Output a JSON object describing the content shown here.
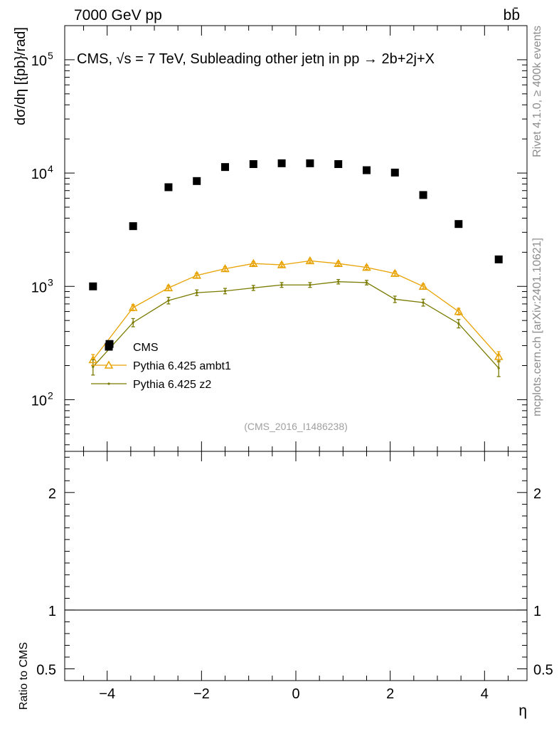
{
  "header": {
    "left_text": "7000 GeV pp",
    "right_text": "bb̄"
  },
  "side_labels": {
    "rivet": "Rivet 4.1.0, ≥ 400k events",
    "mcplots": "mcplots.cern.ch [arXiv:2401.10621]"
  },
  "chart_data": {
    "type": "scatter",
    "title": "CMS, √s = 7 TeV, Subleading other jetη in pp →  2b+2j+X",
    "xlabel": "η",
    "ylabel": "dσ/dη [{pb}/rad]",
    "ratio_ylabel": "Ratio to CMS",
    "watermark": "(CMS_2016_I1486238)",
    "y_scale": "log",
    "xlim": [
      -4.9,
      4.9
    ],
    "ylim": [
      35,
      200000
    ],
    "ratio_ylim": [
      0.4,
      2.35
    ],
    "x_ticks": [
      -4,
      -2,
      0,
      2,
      4
    ],
    "x_tick_labels": [
      "−4",
      "−2",
      "0",
      "2",
      "4"
    ],
    "y_ticks": [
      100,
      1000,
      10000,
      100000
    ],
    "y_tick_labels": [
      "10",
      "10",
      "10",
      "10"
    ],
    "y_tick_exponents": [
      "2",
      "3",
      "4",
      "5"
    ],
    "ratio_ticks": [
      0.5,
      1,
      2
    ],
    "ratio_tick_labels": [
      "0.5",
      "1",
      "2"
    ],
    "legend_position": "lower-left",
    "series": [
      {
        "name": "CMS",
        "color": "#000000",
        "marker": "square",
        "x": [
          -4.3,
          -3.95,
          -3.45,
          -2.7,
          -2.1,
          -1.5,
          -0.9,
          -0.3,
          0.3,
          0.9,
          1.5,
          2.1,
          2.7,
          3.45,
          4.3
        ],
        "y": [
          1000,
          310,
          3400,
          7500,
          8500,
          11300,
          12000,
          12200,
          12200,
          12000,
          10600,
          10100,
          6400,
          3550,
          1730
        ]
      },
      {
        "name": "Pythia 6.425 ambt1",
        "color": "#e8a200",
        "marker": "triangle",
        "x": [
          -4.3,
          -3.45,
          -2.7,
          -2.1,
          -1.5,
          -0.9,
          -0.3,
          0.3,
          0.9,
          1.5,
          2.1,
          2.7,
          3.45,
          4.3
        ],
        "y": [
          225,
          650,
          970,
          1250,
          1430,
          1590,
          1550,
          1680,
          1590,
          1470,
          1300,
          1000,
          600,
          240
        ],
        "err": [
          25,
          40,
          50,
          60,
          60,
          60,
          60,
          60,
          60,
          60,
          60,
          50,
          40,
          25
        ]
      },
      {
        "name": "Pythia 6.425 z2",
        "color": "#7a7a00",
        "marker": "dot",
        "x": [
          -4.3,
          -3.45,
          -2.7,
          -2.1,
          -1.5,
          -0.9,
          -0.3,
          0.3,
          0.9,
          1.5,
          2.1,
          2.7,
          3.45,
          4.3
        ],
        "y": [
          195,
          480,
          750,
          880,
          910,
          970,
          1030,
          1030,
          1100,
          1080,
          770,
          720,
          470,
          190
        ],
        "err": [
          30,
          40,
          50,
          50,
          50,
          50,
          50,
          50,
          50,
          50,
          50,
          50,
          40,
          30
        ]
      }
    ]
  }
}
